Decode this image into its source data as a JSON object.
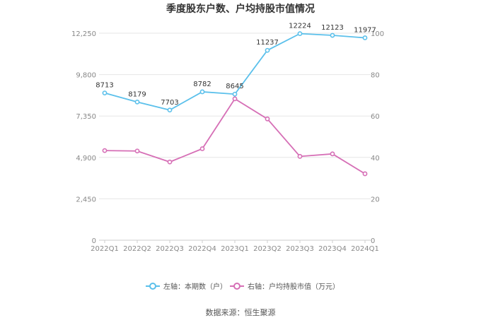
{
  "colors": {
    "left_series": "#5bc0eb",
    "right_series": "#d66fb6",
    "grid": "#e6e6e6",
    "axis": "#cccccc"
  },
  "chart_data": {
    "type": "line",
    "title": "季度股东户数、户均持股市值情况",
    "categories": [
      "2022Q1",
      "2022Q2",
      "2022Q3",
      "2022Q4",
      "2023Q1",
      "2023Q2",
      "2023Q3",
      "2023Q4",
      "2024Q1"
    ],
    "y_left": {
      "ticks": [
        "0",
        "2,450",
        "4,900",
        "7,350",
        "9,800",
        "12,250"
      ],
      "ylim": [
        0,
        12250
      ]
    },
    "y_right": {
      "ticks": [
        "0",
        "20",
        "40",
        "60",
        "80",
        "100"
      ],
      "ylim": [
        0,
        100
      ]
    },
    "series": [
      {
        "name": "左轴：本期数（户）",
        "axis": "left",
        "values": [
          8713,
          8179,
          7703,
          8782,
          8645,
          11237,
          12224,
          12123,
          11977
        ],
        "labels": [
          "8713",
          "8179",
          "7703",
          "8782",
          "8645",
          "11237",
          "12224",
          "12123",
          "11977"
        ]
      },
      {
        "name": "右轴：户均持股市值（万元）",
        "axis": "right",
        "values": [
          43.3,
          43.1,
          37.8,
          44.2,
          68.3,
          58.6,
          40.5,
          41.7,
          32.1
        ]
      }
    ],
    "grid": true,
    "legend": "bottom"
  },
  "source": "数据来源：恒生聚源"
}
